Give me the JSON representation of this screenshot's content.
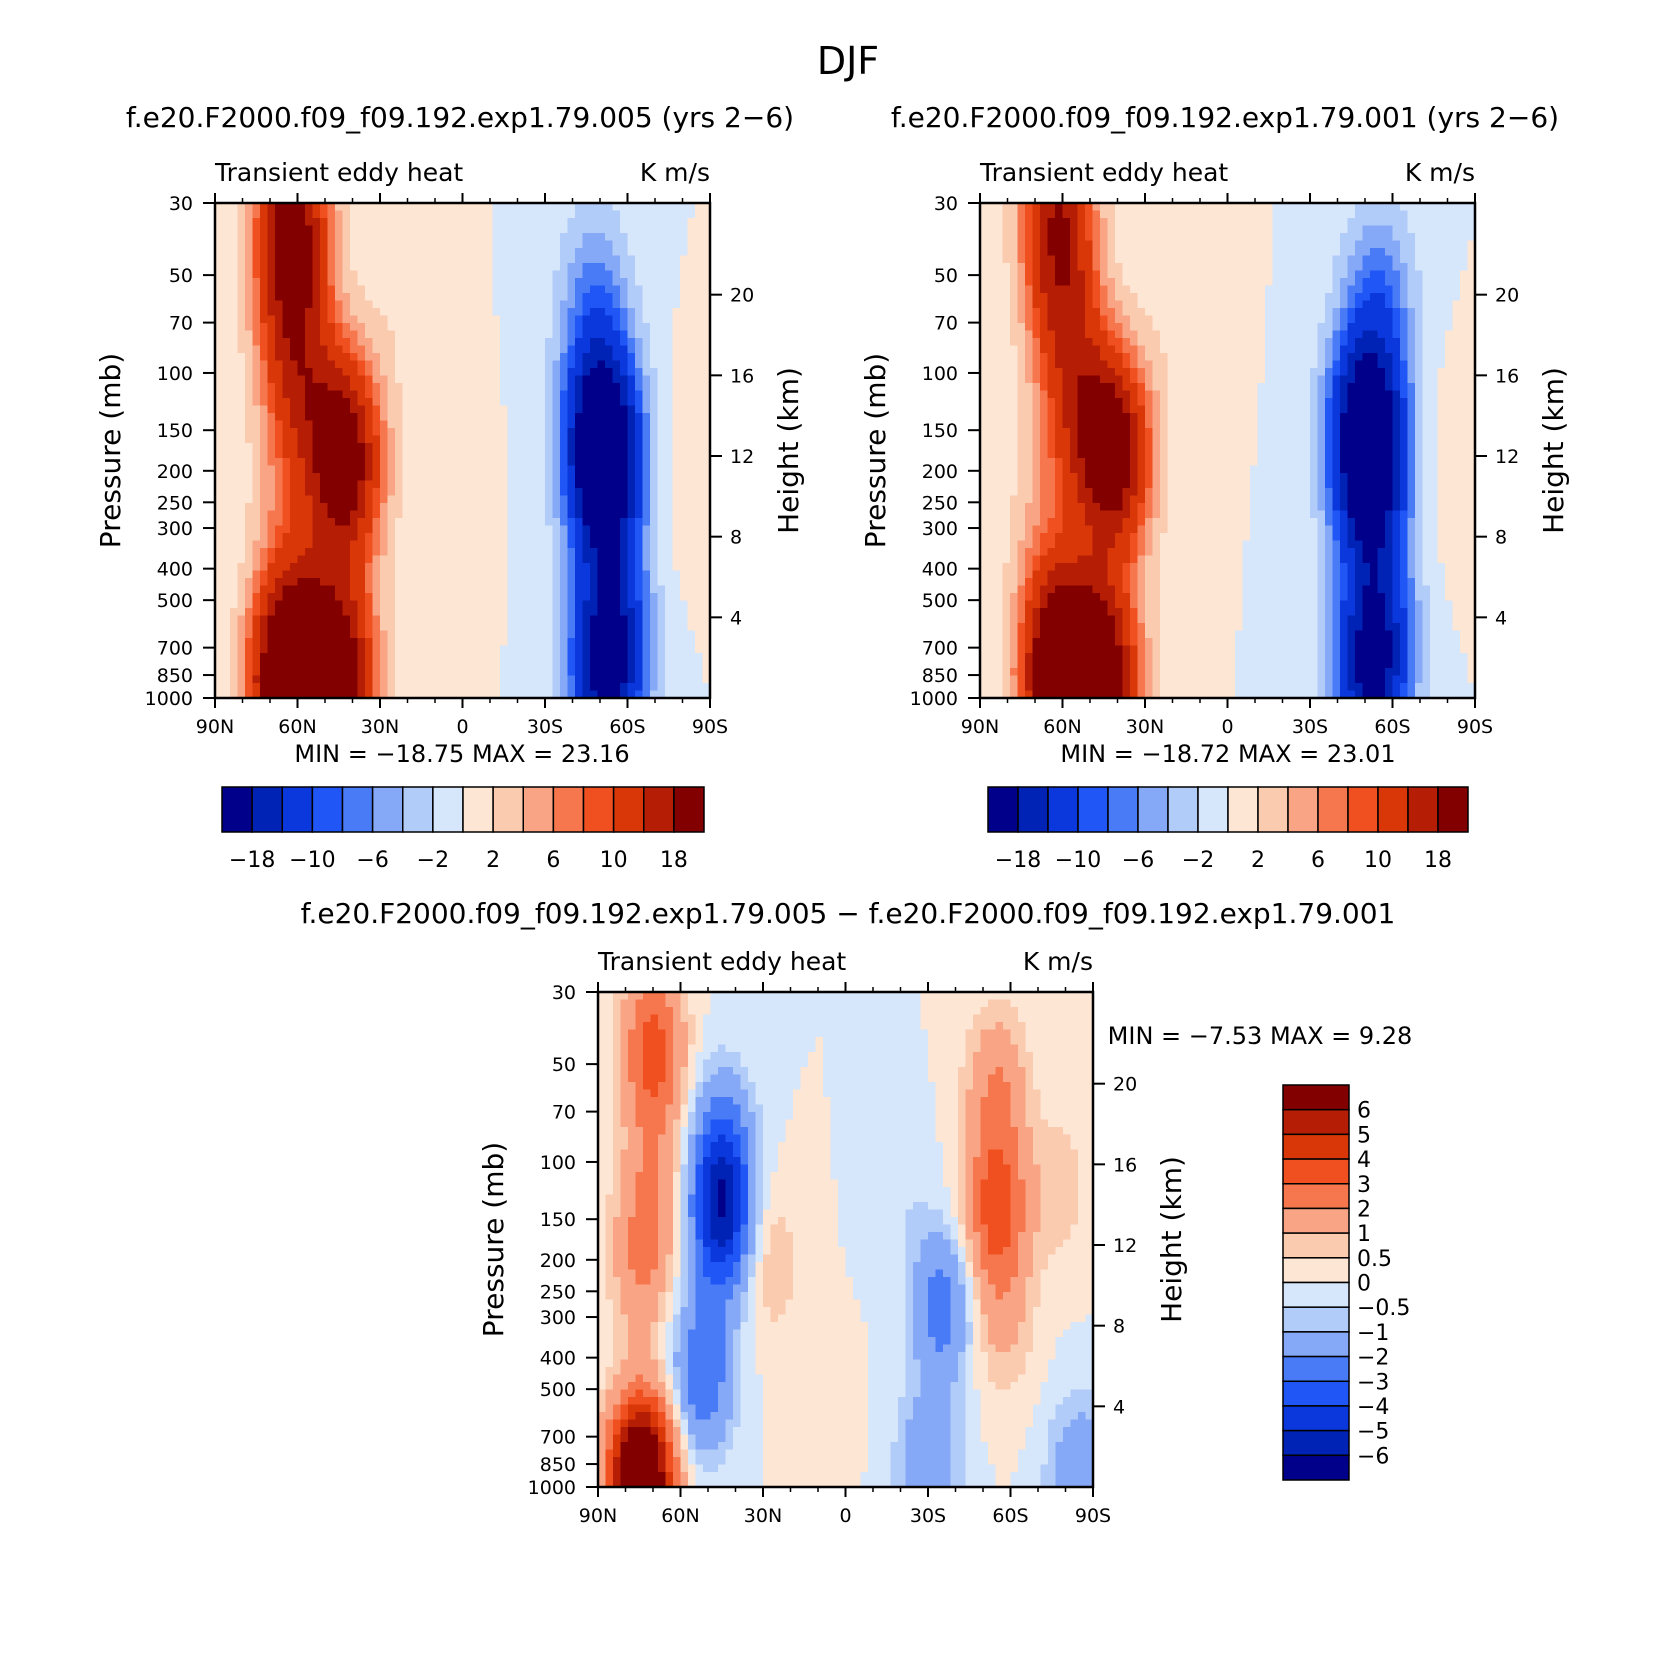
{
  "figure_title": "DJF",
  "chart_data": [
    {
      "type": "heatmap",
      "title": "f.e20.F2000.f09_f09.192.exp1.79.005 (yrs 2−6)",
      "field_label": "Transient eddy heat",
      "units": "K m/s",
      "ylabel": "Pressure (mb)",
      "ylabel_right": "Height (km)",
      "x_ticks": [
        "90N",
        "60N",
        "30N",
        "0",
        "30S",
        "60S",
        "90S"
      ],
      "y_ticks": [
        "30",
        "50",
        "70",
        "100",
        "150",
        "200",
        "250",
        "300",
        "400",
        "500",
        "700",
        "850",
        "1000"
      ],
      "y2_ticks": [
        "4",
        "8",
        "12",
        "16",
        "20"
      ],
      "stats": {
        "min_label": "MIN =",
        "min": "−18.75",
        "max_label": "MAX =",
        "max": "23.16"
      },
      "features": [
        {
          "lat": 62,
          "p": 30,
          "value": 16
        },
        {
          "lat": 62,
          "p": 60,
          "value": 12
        },
        {
          "lat": 60,
          "p": 120,
          "value": 8
        },
        {
          "lat": 42,
          "p": 200,
          "value": 14
        },
        {
          "lat": 45,
          "p": 160,
          "value": 10
        },
        {
          "lat": 65,
          "p": 300,
          "value": 3
        },
        {
          "lat": 60,
          "p": 700,
          "value": 12
        },
        {
          "lat": 45,
          "p": 870,
          "value": 22
        },
        {
          "lat": 65,
          "p": 950,
          "value": 20
        },
        {
          "lat": 22,
          "p": 60,
          "value": 1.5
        },
        {
          "lat": 8,
          "p": 250,
          "value": 1
        },
        {
          "lat": -48,
          "p": 60,
          "value": -6
        },
        {
          "lat": -52,
          "p": 200,
          "value": -18
        },
        {
          "lat": -50,
          "p": 150,
          "value": -14
        },
        {
          "lat": -52,
          "p": 850,
          "value": -16
        },
        {
          "lat": -55,
          "p": 600,
          "value": -8
        },
        {
          "lat": -82,
          "p": 200,
          "value": 1.5
        }
      ]
    },
    {
      "type": "heatmap",
      "title": "f.e20.F2000.f09_f09.192.exp1.79.001 (yrs 2−6)",
      "field_label": "Transient eddy heat",
      "units": "K m/s",
      "ylabel": "Pressure (mb)",
      "ylabel_right": "Height (km)",
      "x_ticks": [
        "90N",
        "60N",
        "30N",
        "0",
        "30S",
        "60S",
        "90S"
      ],
      "y_ticks": [
        "30",
        "50",
        "70",
        "100",
        "150",
        "200",
        "250",
        "300",
        "400",
        "500",
        "700",
        "850",
        "1000"
      ],
      "y2_ticks": [
        "4",
        "8",
        "12",
        "16",
        "20"
      ],
      "stats": {
        "min_label": "MIN =",
        "min": "−18.72",
        "max_label": "MAX =",
        "max": "23.01"
      },
      "features": [
        {
          "lat": 62,
          "p": 30,
          "value": 14
        },
        {
          "lat": 60,
          "p": 60,
          "value": 10
        },
        {
          "lat": 55,
          "p": 130,
          "value": 8
        },
        {
          "lat": 40,
          "p": 190,
          "value": 13
        },
        {
          "lat": 44,
          "p": 160,
          "value": 10
        },
        {
          "lat": 68,
          "p": 300,
          "value": 3
        },
        {
          "lat": 60,
          "p": 700,
          "value": 12
        },
        {
          "lat": 45,
          "p": 870,
          "value": 21
        },
        {
          "lat": 62,
          "p": 950,
          "value": 18
        },
        {
          "lat": 18,
          "p": 60,
          "value": 1.5
        },
        {
          "lat": -55,
          "p": 60,
          "value": -7
        },
        {
          "lat": -52,
          "p": 200,
          "value": -18
        },
        {
          "lat": -50,
          "p": 140,
          "value": -14
        },
        {
          "lat": -52,
          "p": 850,
          "value": -15
        },
        {
          "lat": -55,
          "p": 600,
          "value": -8
        },
        {
          "lat": -83,
          "p": 200,
          "value": 1.5
        }
      ]
    },
    {
      "type": "heatmap",
      "title": "f.e20.F2000.f09_f09.192.exp1.79.005 − f.e20.F2000.f09_f09.192.exp1.79.001",
      "field_label": "Transient eddy heat",
      "units": "K m/s",
      "ylabel": "Pressure (mb)",
      "ylabel_right": "Height (km)",
      "x_ticks": [
        "90N",
        "60N",
        "30N",
        "0",
        "30S",
        "60S",
        "90S"
      ],
      "y_ticks": [
        "30",
        "50",
        "70",
        "100",
        "150",
        "200",
        "250",
        "300",
        "400",
        "500",
        "700",
        "850",
        "1000"
      ],
      "y2_ticks": [
        "4",
        "8",
        "12",
        "16",
        "20"
      ],
      "stats": {
        "min_label": "MIN =",
        "min": "−7.53",
        "max_label": "MAX =",
        "max": "9.28"
      },
      "features": [
        {
          "lat": 70,
          "p": 45,
          "value": 3.5
        },
        {
          "lat": 74,
          "p": 200,
          "value": 2
        },
        {
          "lat": 70,
          "p": 110,
          "value": 1.5
        },
        {
          "lat": 45,
          "p": 150,
          "value": -5
        },
        {
          "lat": 45,
          "p": 90,
          "value": -2.5
        },
        {
          "lat": 52,
          "p": 450,
          "value": -3
        },
        {
          "lat": 72,
          "p": 880,
          "value": 4
        },
        {
          "lat": 76,
          "p": 970,
          "value": 6
        },
        {
          "lat": 28,
          "p": 200,
          "value": 1
        },
        {
          "lat": 10,
          "p": 600,
          "value": 0.4
        },
        {
          "lat": -35,
          "p": 280,
          "value": -2.5
        },
        {
          "lat": -30,
          "p": 900,
          "value": -2
        },
        {
          "lat": -20,
          "p": 120,
          "value": -0.4
        },
        {
          "lat": -55,
          "p": 140,
          "value": 3.5
        },
        {
          "lat": -55,
          "p": 60,
          "value": 2
        },
        {
          "lat": -57,
          "p": 300,
          "value": 1.2
        },
        {
          "lat": -78,
          "p": 120,
          "value": 0.8
        },
        {
          "lat": -85,
          "p": 950,
          "value": -2
        }
      ]
    }
  ],
  "colorbars": {
    "top": {
      "colors": [
        "#00008b",
        "#0022b5",
        "#0b38dc",
        "#1f56f5",
        "#4a7bf7",
        "#86a9f7",
        "#b2ccfa",
        "#d6e6fb",
        "#fde6d3",
        "#fbcbb0",
        "#f9a585",
        "#f6774e",
        "#f0501f",
        "#d93707",
        "#b51e04",
        "#820000"
      ],
      "labels": [
        "−18",
        "−10",
        "−6",
        "−2",
        "2",
        "6",
        "10",
        "18"
      ]
    },
    "diff": {
      "colors": [
        "#00008b",
        "#0022b5",
        "#0b38dc",
        "#1f56f5",
        "#4a7bf7",
        "#86a9f7",
        "#b2ccfa",
        "#d6e6fb",
        "#fde6d3",
        "#fbcbb0",
        "#f9a585",
        "#f6774e",
        "#f0501f",
        "#d93707",
        "#b51e04",
        "#820000"
      ],
      "labels": [
        "6",
        "5",
        "4",
        "3",
        "2",
        "1",
        "0.5",
        "0",
        "−0.5",
        "−1",
        "−2",
        "−3",
        "−4",
        "−5",
        "−6"
      ]
    }
  }
}
